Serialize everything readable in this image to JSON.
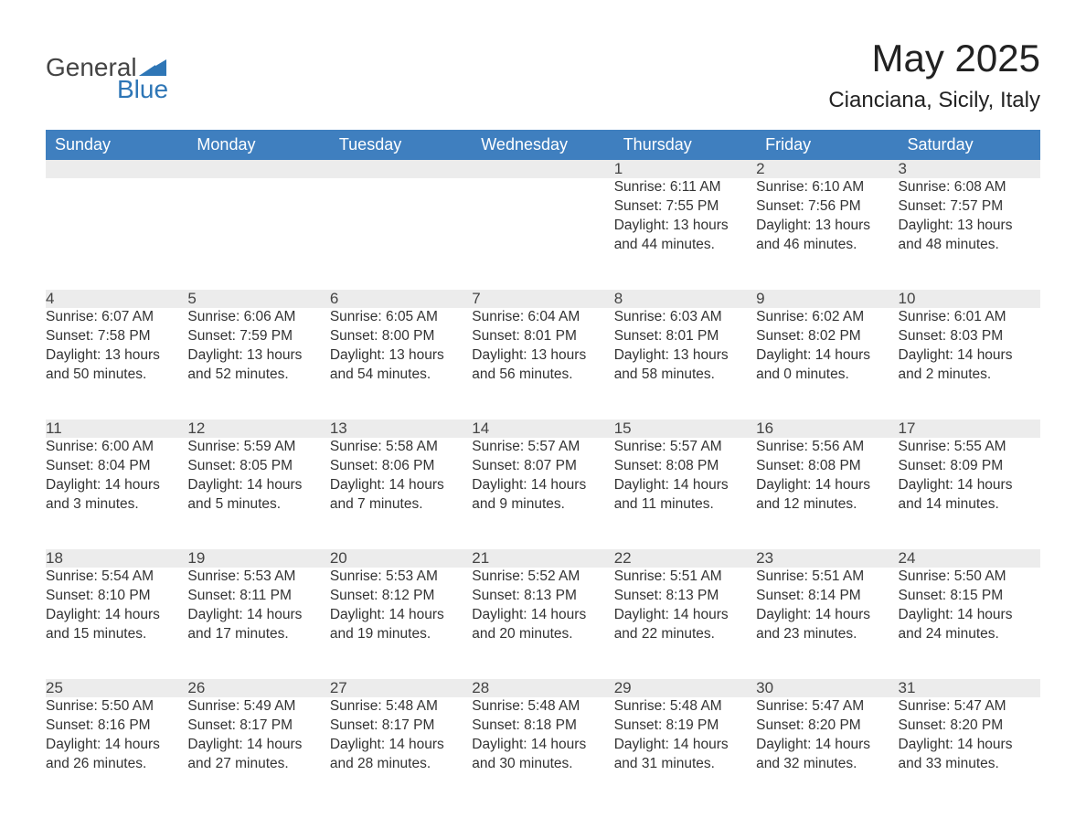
{
  "colors": {
    "header_bg": "#3f7fbf",
    "header_text": "#ffffff",
    "daynum_bg": "#ececec",
    "daynum_border": "#3f7fbf",
    "body_text": "#333333",
    "logo_accent": "#2e76b6",
    "logo_text": "#444444",
    "page_bg": "#ffffff"
  },
  "logo": {
    "line1": "General",
    "line2": "Blue"
  },
  "title": "May 2025",
  "location": "Cianciana, Sicily, Italy",
  "weekdays": [
    "Sunday",
    "Monday",
    "Tuesday",
    "Wednesday",
    "Thursday",
    "Friday",
    "Saturday"
  ],
  "weeks": [
    [
      null,
      null,
      null,
      null,
      {
        "n": "1",
        "sunrise": "Sunrise: 6:11 AM",
        "sunset": "Sunset: 7:55 PM",
        "dl1": "Daylight: 13 hours",
        "dl2": "and 44 minutes."
      },
      {
        "n": "2",
        "sunrise": "Sunrise: 6:10 AM",
        "sunset": "Sunset: 7:56 PM",
        "dl1": "Daylight: 13 hours",
        "dl2": "and 46 minutes."
      },
      {
        "n": "3",
        "sunrise": "Sunrise: 6:08 AM",
        "sunset": "Sunset: 7:57 PM",
        "dl1": "Daylight: 13 hours",
        "dl2": "and 48 minutes."
      }
    ],
    [
      {
        "n": "4",
        "sunrise": "Sunrise: 6:07 AM",
        "sunset": "Sunset: 7:58 PM",
        "dl1": "Daylight: 13 hours",
        "dl2": "and 50 minutes."
      },
      {
        "n": "5",
        "sunrise": "Sunrise: 6:06 AM",
        "sunset": "Sunset: 7:59 PM",
        "dl1": "Daylight: 13 hours",
        "dl2": "and 52 minutes."
      },
      {
        "n": "6",
        "sunrise": "Sunrise: 6:05 AM",
        "sunset": "Sunset: 8:00 PM",
        "dl1": "Daylight: 13 hours",
        "dl2": "and 54 minutes."
      },
      {
        "n": "7",
        "sunrise": "Sunrise: 6:04 AM",
        "sunset": "Sunset: 8:01 PM",
        "dl1": "Daylight: 13 hours",
        "dl2": "and 56 minutes."
      },
      {
        "n": "8",
        "sunrise": "Sunrise: 6:03 AM",
        "sunset": "Sunset: 8:01 PM",
        "dl1": "Daylight: 13 hours",
        "dl2": "and 58 minutes."
      },
      {
        "n": "9",
        "sunrise": "Sunrise: 6:02 AM",
        "sunset": "Sunset: 8:02 PM",
        "dl1": "Daylight: 14 hours",
        "dl2": "and 0 minutes."
      },
      {
        "n": "10",
        "sunrise": "Sunrise: 6:01 AM",
        "sunset": "Sunset: 8:03 PM",
        "dl1": "Daylight: 14 hours",
        "dl2": "and 2 minutes."
      }
    ],
    [
      {
        "n": "11",
        "sunrise": "Sunrise: 6:00 AM",
        "sunset": "Sunset: 8:04 PM",
        "dl1": "Daylight: 14 hours",
        "dl2": "and 3 minutes."
      },
      {
        "n": "12",
        "sunrise": "Sunrise: 5:59 AM",
        "sunset": "Sunset: 8:05 PM",
        "dl1": "Daylight: 14 hours",
        "dl2": "and 5 minutes."
      },
      {
        "n": "13",
        "sunrise": "Sunrise: 5:58 AM",
        "sunset": "Sunset: 8:06 PM",
        "dl1": "Daylight: 14 hours",
        "dl2": "and 7 minutes."
      },
      {
        "n": "14",
        "sunrise": "Sunrise: 5:57 AM",
        "sunset": "Sunset: 8:07 PM",
        "dl1": "Daylight: 14 hours",
        "dl2": "and 9 minutes."
      },
      {
        "n": "15",
        "sunrise": "Sunrise: 5:57 AM",
        "sunset": "Sunset: 8:08 PM",
        "dl1": "Daylight: 14 hours",
        "dl2": "and 11 minutes."
      },
      {
        "n": "16",
        "sunrise": "Sunrise: 5:56 AM",
        "sunset": "Sunset: 8:08 PM",
        "dl1": "Daylight: 14 hours",
        "dl2": "and 12 minutes."
      },
      {
        "n": "17",
        "sunrise": "Sunrise: 5:55 AM",
        "sunset": "Sunset: 8:09 PM",
        "dl1": "Daylight: 14 hours",
        "dl2": "and 14 minutes."
      }
    ],
    [
      {
        "n": "18",
        "sunrise": "Sunrise: 5:54 AM",
        "sunset": "Sunset: 8:10 PM",
        "dl1": "Daylight: 14 hours",
        "dl2": "and 15 minutes."
      },
      {
        "n": "19",
        "sunrise": "Sunrise: 5:53 AM",
        "sunset": "Sunset: 8:11 PM",
        "dl1": "Daylight: 14 hours",
        "dl2": "and 17 minutes."
      },
      {
        "n": "20",
        "sunrise": "Sunrise: 5:53 AM",
        "sunset": "Sunset: 8:12 PM",
        "dl1": "Daylight: 14 hours",
        "dl2": "and 19 minutes."
      },
      {
        "n": "21",
        "sunrise": "Sunrise: 5:52 AM",
        "sunset": "Sunset: 8:13 PM",
        "dl1": "Daylight: 14 hours",
        "dl2": "and 20 minutes."
      },
      {
        "n": "22",
        "sunrise": "Sunrise: 5:51 AM",
        "sunset": "Sunset: 8:13 PM",
        "dl1": "Daylight: 14 hours",
        "dl2": "and 22 minutes."
      },
      {
        "n": "23",
        "sunrise": "Sunrise: 5:51 AM",
        "sunset": "Sunset: 8:14 PM",
        "dl1": "Daylight: 14 hours",
        "dl2": "and 23 minutes."
      },
      {
        "n": "24",
        "sunrise": "Sunrise: 5:50 AM",
        "sunset": "Sunset: 8:15 PM",
        "dl1": "Daylight: 14 hours",
        "dl2": "and 24 minutes."
      }
    ],
    [
      {
        "n": "25",
        "sunrise": "Sunrise: 5:50 AM",
        "sunset": "Sunset: 8:16 PM",
        "dl1": "Daylight: 14 hours",
        "dl2": "and 26 minutes."
      },
      {
        "n": "26",
        "sunrise": "Sunrise: 5:49 AM",
        "sunset": "Sunset: 8:17 PM",
        "dl1": "Daylight: 14 hours",
        "dl2": "and 27 minutes."
      },
      {
        "n": "27",
        "sunrise": "Sunrise: 5:48 AM",
        "sunset": "Sunset: 8:17 PM",
        "dl1": "Daylight: 14 hours",
        "dl2": "and 28 minutes."
      },
      {
        "n": "28",
        "sunrise": "Sunrise: 5:48 AM",
        "sunset": "Sunset: 8:18 PM",
        "dl1": "Daylight: 14 hours",
        "dl2": "and 30 minutes."
      },
      {
        "n": "29",
        "sunrise": "Sunrise: 5:48 AM",
        "sunset": "Sunset: 8:19 PM",
        "dl1": "Daylight: 14 hours",
        "dl2": "and 31 minutes."
      },
      {
        "n": "30",
        "sunrise": "Sunrise: 5:47 AM",
        "sunset": "Sunset: 8:20 PM",
        "dl1": "Daylight: 14 hours",
        "dl2": "and 32 minutes."
      },
      {
        "n": "31",
        "sunrise": "Sunrise: 5:47 AM",
        "sunset": "Sunset: 8:20 PM",
        "dl1": "Daylight: 14 hours",
        "dl2": "and 33 minutes."
      }
    ]
  ]
}
